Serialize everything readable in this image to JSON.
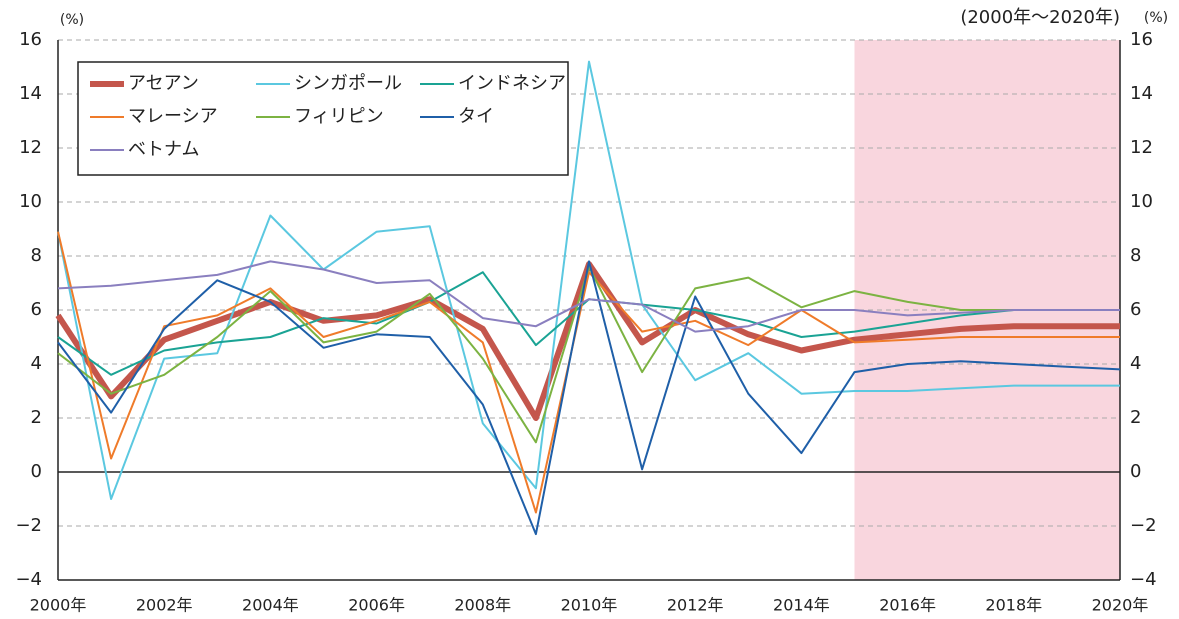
{
  "chart_data": {
    "type": "line",
    "y_unit_left": "(%)",
    "y_unit_right": "(%)",
    "period": "(2000年～2020年)",
    "x": [
      2000,
      2001,
      2002,
      2003,
      2004,
      2005,
      2006,
      2007,
      2008,
      2009,
      2010,
      2011,
      2012,
      2013,
      2014,
      2015,
      2016,
      2017,
      2018,
      2019,
      2020
    ],
    "xlim": [
      2000,
      2020
    ],
    "xticks": [
      {
        "value": 2000,
        "label": "2000年"
      },
      {
        "value": 2002,
        "label": "2002年"
      },
      {
        "value": 2004,
        "label": "2004年"
      },
      {
        "value": 2006,
        "label": "2006年"
      },
      {
        "value": 2008,
        "label": "2008年"
      },
      {
        "value": 2010,
        "label": "2010年"
      },
      {
        "value": 2012,
        "label": "2012年"
      },
      {
        "value": 2014,
        "label": "2014年"
      },
      {
        "value": 2016,
        "label": "2016年"
      },
      {
        "value": 2018,
        "label": "2018年"
      },
      {
        "value": 2020,
        "label": "2020年"
      }
    ],
    "ylim": [
      -4,
      16
    ],
    "yticks": [
      {
        "value": -4,
        "label": "−4"
      },
      {
        "value": -2,
        "label": "−2"
      },
      0,
      2,
      4,
      6,
      8,
      10,
      12,
      14,
      16
    ],
    "y2lim": [
      -4,
      16
    ],
    "y2ticks": [
      {
        "value": -4,
        "label": "−4"
      },
      {
        "value": -2,
        "label": "−2"
      },
      0,
      2,
      4,
      6,
      8,
      10,
      12,
      14,
      16
    ],
    "grid": true,
    "shaded_xrange": [
      2015,
      2020
    ],
    "shade_color": "#f9d6de",
    "legend": "upper left",
    "series": [
      {
        "name": "アセアン",
        "color": "#c4564c",
        "width": 6,
        "values": [
          5.8,
          2.8,
          4.9,
          5.6,
          6.3,
          5.6,
          5.8,
          6.4,
          5.3,
          2.0,
          7.7,
          4.8,
          6.0,
          5.1,
          4.5,
          4.9,
          5.1,
          5.3,
          5.4,
          5.4,
          5.4
        ]
      },
      {
        "name": "シンガポール",
        "color": "#5bc8e0",
        "width": 2,
        "values": [
          8.9,
          -1.0,
          4.2,
          4.4,
          9.5,
          7.5,
          8.9,
          9.1,
          1.8,
          -0.6,
          15.2,
          6.2,
          3.4,
          4.4,
          2.9,
          3.0,
          3.0,
          3.1,
          3.2,
          3.2,
          3.2
        ]
      },
      {
        "name": "インドネシア",
        "color": "#1aa394",
        "width": 2,
        "values": [
          5.0,
          3.6,
          4.5,
          4.8,
          5.0,
          5.7,
          5.5,
          6.3,
          7.4,
          4.7,
          6.4,
          6.2,
          6.0,
          5.6,
          5.0,
          5.2,
          5.5,
          5.8,
          6.0,
          6.0,
          6.0
        ]
      },
      {
        "name": "マレーシア",
        "color": "#ef7b2a",
        "width": 2,
        "values": [
          8.9,
          0.5,
          5.4,
          5.8,
          6.8,
          5.0,
          5.6,
          6.3,
          4.8,
          -1.5,
          7.4,
          5.2,
          5.6,
          4.7,
          6.0,
          4.8,
          4.9,
          5.0,
          5.0,
          5.0,
          5.0
        ]
      },
      {
        "name": "フィリピン",
        "color": "#7cb342",
        "width": 2,
        "values": [
          4.4,
          2.9,
          3.6,
          5.0,
          6.7,
          4.8,
          5.2,
          6.6,
          4.2,
          1.1,
          7.6,
          3.7,
          6.8,
          7.2,
          6.1,
          6.7,
          6.3,
          6.0,
          6.0,
          6.0,
          6.0
        ]
      },
      {
        "name": "タイ",
        "color": "#1f5fa8",
        "width": 2,
        "values": [
          4.8,
          2.2,
          5.3,
          7.1,
          6.3,
          4.6,
          5.1,
          5.0,
          2.5,
          -2.3,
          7.8,
          0.1,
          6.5,
          2.9,
          0.7,
          3.7,
          4.0,
          4.1,
          4.0,
          3.9,
          3.8
        ]
      },
      {
        "name": "ベトナム",
        "color": "#8a7fbf",
        "width": 2,
        "values": [
          6.8,
          6.9,
          7.1,
          7.3,
          7.8,
          7.5,
          7.0,
          7.1,
          5.7,
          5.4,
          6.4,
          6.2,
          5.2,
          5.4,
          6.0,
          6.0,
          5.8,
          5.9,
          6.0,
          6.0,
          6.0
        ]
      }
    ]
  }
}
